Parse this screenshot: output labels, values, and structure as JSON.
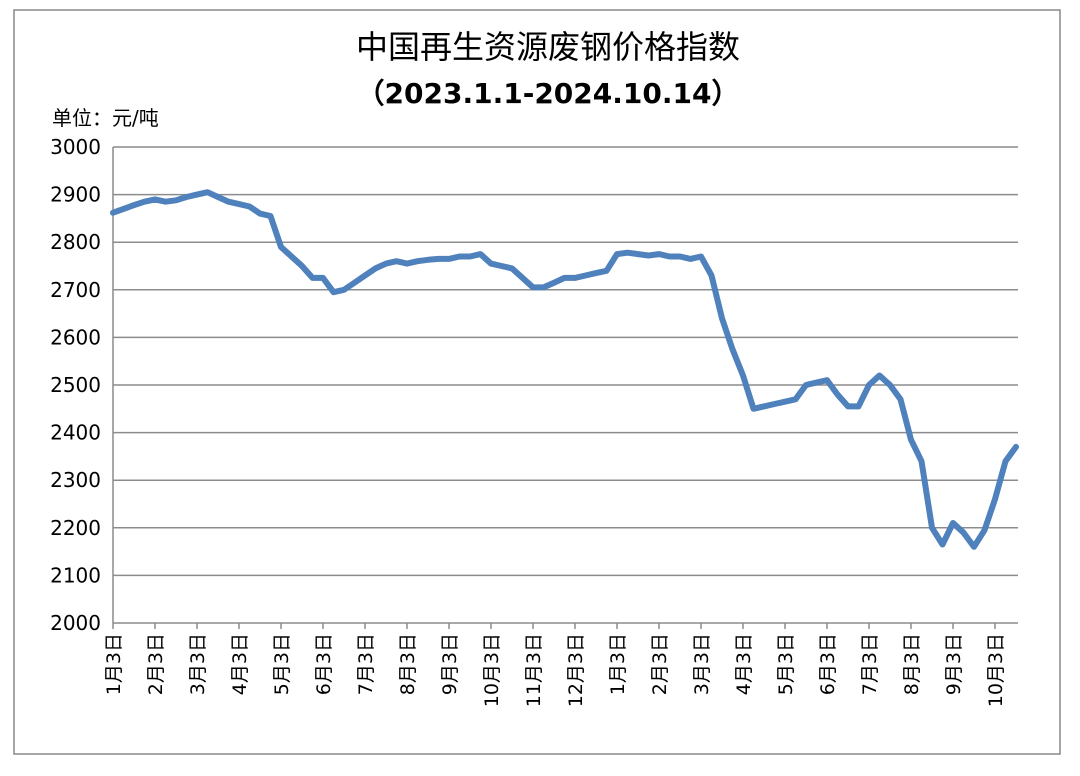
{
  "chart_data": {
    "type": "line",
    "title": "中国再生资源废钢价格指数",
    "subtitle": "（2023.1.1-2024.10.14）",
    "y_label": "单位：元/吨",
    "categories": [
      "1月3日",
      null,
      null,
      null,
      "2月3日",
      null,
      null,
      null,
      "3月3日",
      null,
      null,
      null,
      "4月3日",
      null,
      null,
      null,
      "5月3日",
      null,
      null,
      null,
      "6月3日",
      null,
      null,
      null,
      "7月3日",
      null,
      null,
      null,
      "8月3日",
      null,
      null,
      null,
      "9月3日",
      null,
      null,
      null,
      "10月3日",
      null,
      null,
      null,
      "11月3日",
      null,
      null,
      null,
      "12月3日",
      null,
      null,
      null,
      "1月3日",
      null,
      null,
      null,
      "2月3日",
      null,
      null,
      null,
      "3月3日",
      null,
      null,
      null,
      "4月3日",
      null,
      null,
      null,
      "5月3日",
      null,
      null,
      null,
      "6月3日",
      null,
      null,
      null,
      "7月3日",
      null,
      null,
      null,
      "8月3日",
      null,
      null,
      null,
      "9月3日",
      null,
      null,
      null,
      "10月3日",
      null,
      null
    ],
    "series": [
      {
        "name": "废钢价格指数",
        "color": "#4f81bd",
        "values": [
          2862,
          2870,
          2878,
          2885,
          2890,
          2885,
          2888,
          2895,
          2900,
          2905,
          2895,
          2885,
          2880,
          2875,
          2860,
          2855,
          2790,
          2770,
          2750,
          2725,
          2725,
          2695,
          2700,
          2715,
          2730,
          2745,
          2755,
          2760,
          2755,
          2760,
          2763,
          2765,
          2765,
          2770,
          2770,
          2775,
          2755,
          2750,
          2745,
          2725,
          2705,
          2705,
          2715,
          2725,
          2725,
          2730,
          2735,
          2740,
          2775,
          2778,
          2775,
          2772,
          2775,
          2770,
          2770,
          2765,
          2770,
          2730,
          2640,
          2575,
          2520,
          2450,
          2455,
          2460,
          2465,
          2470,
          2500,
          2505,
          2510,
          2480,
          2455,
          2455,
          2500,
          2520,
          2500,
          2470,
          2385,
          2340,
          2200,
          2165,
          2210,
          2190,
          2160,
          2195,
          2260,
          2340,
          2370
        ]
      }
    ],
    "ylim": [
      2000,
      3000
    ],
    "yticks": [
      2000,
      2100,
      2200,
      2300,
      2400,
      2500,
      2600,
      2700,
      2800,
      2900,
      3000
    ],
    "grid": true
  }
}
